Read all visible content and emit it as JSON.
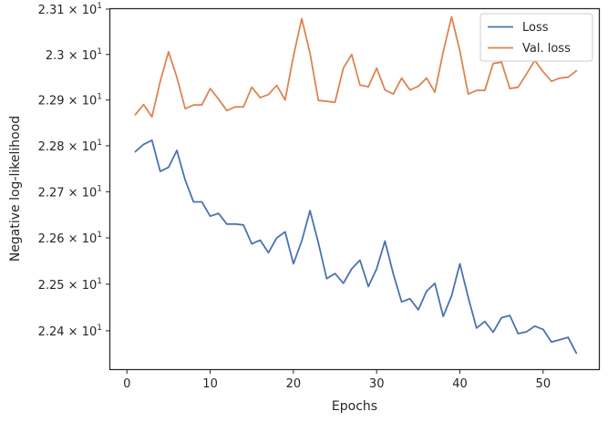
{
  "chart_data": {
    "type": "line",
    "title": "",
    "xlabel": "Epochs",
    "ylabel": "Negative log-likelihood",
    "yscale": "log",
    "xlim": [
      -2,
      56.7
    ],
    "ylim": [
      22.318,
      23.1
    ],
    "grid": false,
    "legend_position": "top-right",
    "x_ticks": [
      0,
      10,
      20,
      30,
      40,
      50
    ],
    "x_tick_labels": [
      "0",
      "10",
      "20",
      "30",
      "40",
      "50"
    ],
    "y_ticks": [
      22.4,
      22.5,
      22.6,
      22.7,
      22.8,
      22.9,
      23.0,
      23.1
    ],
    "y_tick_labels": [
      {
        "mantissa": "2.24",
        "exp": "1"
      },
      {
        "mantissa": "2.25",
        "exp": "1"
      },
      {
        "mantissa": "2.26",
        "exp": "1"
      },
      {
        "mantissa": "2.27",
        "exp": "1"
      },
      {
        "mantissa": "2.28",
        "exp": "1"
      },
      {
        "mantissa": "2.29",
        "exp": "1"
      },
      {
        "mantissa": "2.3",
        "exp": "1"
      },
      {
        "mantissa": "2.31",
        "exp": "1"
      }
    ],
    "x": [
      1,
      2,
      3,
      4,
      5,
      6,
      7,
      8,
      9,
      10,
      11,
      12,
      13,
      14,
      15,
      16,
      17,
      18,
      19,
      20,
      21,
      22,
      23,
      24,
      25,
      26,
      27,
      28,
      29,
      30,
      31,
      32,
      33,
      34,
      35,
      36,
      37,
      38,
      39,
      40,
      41,
      42,
      43,
      44,
      45,
      46,
      47,
      48,
      49,
      50,
      51,
      52,
      53,
      54
    ],
    "series": [
      {
        "name": "Loss",
        "color": "#4c72b0",
        "values": [
          22.787,
          22.803,
          22.812,
          22.744,
          22.753,
          22.79,
          22.725,
          22.678,
          22.678,
          22.647,
          22.653,
          22.63,
          22.63,
          22.628,
          22.587,
          22.595,
          22.568,
          22.6,
          22.613,
          22.544,
          22.593,
          22.659,
          22.589,
          22.512,
          22.523,
          22.502,
          22.533,
          22.552,
          22.495,
          22.533,
          22.593,
          22.522,
          22.462,
          22.469,
          22.445,
          22.485,
          22.502,
          22.431,
          22.475,
          22.544,
          22.472,
          22.406,
          22.42,
          22.397,
          22.428,
          22.433,
          22.394,
          22.398,
          22.41,
          22.403,
          22.376,
          22.381,
          22.386,
          22.352
        ]
      },
      {
        "name": "Val. loss",
        "color": "#dd8452",
        "values": [
          22.868,
          22.89,
          22.863,
          22.941,
          23.006,
          22.95,
          22.881,
          22.889,
          22.889,
          22.925,
          22.902,
          22.877,
          22.885,
          22.885,
          22.928,
          22.905,
          22.912,
          22.932,
          22.9,
          22.996,
          23.079,
          23.003,
          22.899,
          22.897,
          22.895,
          22.97,
          23.0,
          22.933,
          22.929,
          22.97,
          22.922,
          22.913,
          22.948,
          22.922,
          22.93,
          22.948,
          22.917,
          23.006,
          23.083,
          23.008,
          22.913,
          22.921,
          22.921,
          22.98,
          22.983,
          22.925,
          22.928,
          22.957,
          22.987,
          22.962,
          22.941,
          22.948,
          22.95,
          22.964
        ]
      }
    ]
  }
}
